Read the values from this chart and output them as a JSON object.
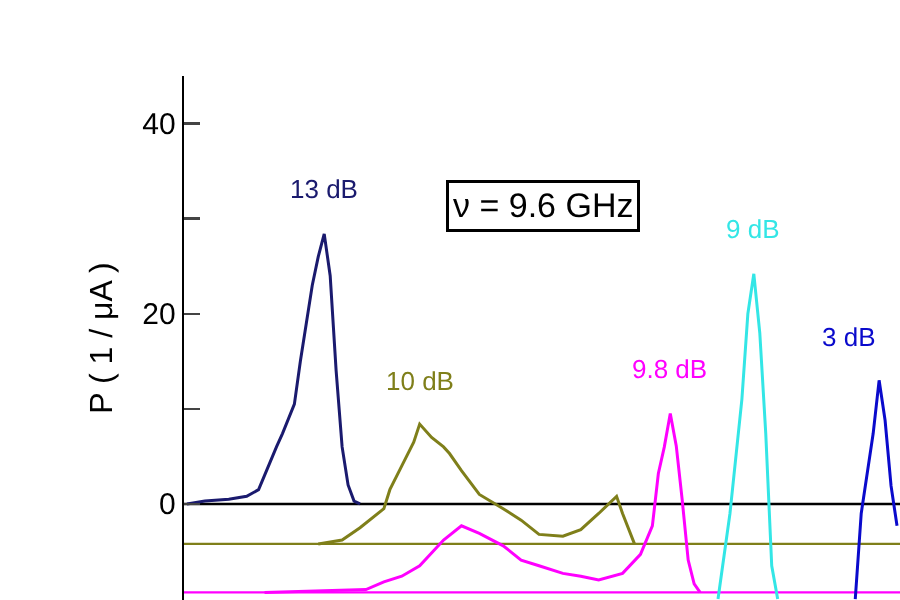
{
  "chart_data": {
    "type": "line",
    "ylabel": "P ( 1 / μA )",
    "annotations": [
      "ν = 9.6 GHz"
    ],
    "categories": [
      null,
      null,
      null,
      null,
      null,
      null,
      null,
      null,
      null,
      null,
      null,
      null,
      null,
      null,
      null,
      null,
      null,
      null,
      null,
      null,
      null,
      null,
      null,
      null,
      null,
      null,
      null,
      null,
      null,
      null,
      null,
      null,
      null,
      null,
      null,
      null,
      null,
      null,
      null,
      null,
      null,
      null,
      null,
      null,
      null,
      null,
      null,
      null,
      null,
      null,
      null,
      null,
      null,
      null,
      null,
      null,
      null,
      null,
      null,
      null,
      null,
      null,
      null,
      null,
      null,
      null,
      null,
      null,
      null,
      null,
      null,
      null,
      null,
      null,
      null,
      null,
      null,
      null,
      null,
      null,
      null,
      null,
      null,
      null,
      null,
      null,
      null,
      null,
      null,
      null,
      null,
      null,
      null,
      null,
      null,
      null,
      null,
      null,
      null,
      null,
      null,
      null,
      null,
      null,
      null,
      null,
      null,
      null,
      null,
      null,
      null,
      null,
      null,
      null,
      null,
      null,
      null,
      null,
      null,
      null
    ],
    "series": [
      {
        "name": "13 dB",
        "color": "#1a1a6e",
        "values": [
          0,
          null,
          null,
          0.3,
          null,
          null,
          null,
          0.5,
          null,
          null,
          0.8,
          null,
          1.5,
          3,
          null,
          6,
          7.4,
          null,
          10.5,
          15,
          19,
          23,
          26,
          28.4,
          24,
          14,
          6,
          2,
          0.3,
          0,
          null,
          null,
          null,
          null,
          null,
          null,
          null,
          null,
          null,
          null,
          null,
          null,
          null,
          null,
          null,
          null,
          null,
          null,
          null,
          null,
          null,
          null,
          null,
          null,
          null,
          null,
          null,
          null,
          null,
          null,
          null,
          null,
          null,
          null,
          null,
          null,
          null,
          null,
          null,
          null,
          null,
          null,
          null,
          null,
          null,
          null,
          null,
          null,
          null,
          null,
          null,
          null,
          null,
          null,
          null,
          null,
          null,
          null,
          null,
          null,
          null,
          null,
          null,
          null,
          null,
          null,
          null,
          null,
          null,
          null,
          null,
          null,
          null,
          null,
          null,
          null,
          null,
          null,
          null,
          null,
          null,
          null,
          null,
          null,
          null,
          null,
          null,
          null,
          null,
          null
        ]
      },
      {
        "name": "10 dB",
        "color": "#7f7f1a",
        "values": [
          null,
          null,
          null,
          null,
          null,
          null,
          null,
          null,
          null,
          null,
          null,
          null,
          null,
          null,
          null,
          null,
          null,
          null,
          null,
          null,
          null,
          null,
          -4.2,
          null,
          null,
          null,
          -3.8,
          null,
          null,
          -2.5,
          null,
          null,
          null,
          -0.5,
          1.5,
          null,
          4,
          null,
          6.5,
          8.4,
          null,
          7,
          null,
          6,
          5.3,
          null,
          3.5,
          null,
          null,
          1,
          null,
          null,
          null,
          -0.5,
          null,
          null,
          -1.7,
          null,
          null,
          -3.2,
          null,
          null,
          null,
          -3.4,
          null,
          null,
          -2.7,
          null,
          null,
          -1,
          null,
          null,
          0.8,
          -1,
          null,
          -4.2,
          null,
          null,
          null,
          null,
          null,
          null,
          null,
          null,
          null,
          null,
          null,
          null,
          null,
          null,
          null,
          null,
          null,
          null,
          null,
          null,
          null,
          null,
          null,
          null,
          null,
          null,
          null,
          null,
          null,
          null,
          null,
          null,
          null,
          null,
          null,
          null,
          null,
          null,
          null,
          null,
          null,
          null,
          null,
          null
        ]
      },
      {
        "name": "9.8 dB",
        "color": "#ff00ff",
        "values": [
          null,
          null,
          null,
          null,
          null,
          null,
          null,
          null,
          null,
          null,
          null,
          null,
          null,
          -9.3,
          null,
          null,
          null,
          null,
          null,
          null,
          null,
          null,
          null,
          null,
          null,
          null,
          null,
          null,
          null,
          null,
          -9,
          null,
          null,
          -8.2,
          null,
          null,
          -7.6,
          null,
          null,
          -6.5,
          null,
          null,
          null,
          -3.8,
          null,
          null,
          -2.3,
          null,
          null,
          -3.1,
          null,
          null,
          null,
          -4.4,
          null,
          null,
          -5.9,
          null,
          null,
          -6.5,
          null,
          null,
          null,
          -7.3,
          null,
          null,
          -7.6,
          null,
          null,
          -8,
          null,
          null,
          null,
          -7.3,
          null,
          null,
          -5.3,
          null,
          -2.3,
          3.2,
          6,
          9.5,
          6.1,
          0.4,
          -5.9,
          -8.4,
          -9.3,
          null,
          null,
          null,
          null,
          null,
          null,
          null,
          null,
          null,
          null,
          null,
          null,
          null,
          null,
          null,
          null,
          null,
          null,
          null,
          null,
          null,
          null,
          null,
          null,
          null,
          null,
          null,
          null,
          null,
          null,
          null,
          null,
          null
        ]
      },
      {
        "name": "9 dB",
        "color": "#33e6e6",
        "values": [
          null,
          null,
          null,
          null,
          null,
          null,
          null,
          null,
          null,
          null,
          null,
          null,
          null,
          null,
          null,
          null,
          null,
          null,
          null,
          null,
          null,
          null,
          null,
          null,
          null,
          null,
          null,
          null,
          null,
          null,
          null,
          null,
          null,
          null,
          null,
          null,
          null,
          null,
          null,
          null,
          null,
          null,
          null,
          null,
          null,
          null,
          null,
          null,
          null,
          null,
          null,
          null,
          null,
          null,
          null,
          null,
          null,
          null,
          null,
          null,
          null,
          null,
          null,
          null,
          null,
          null,
          null,
          null,
          null,
          null,
          null,
          null,
          null,
          null,
          null,
          null,
          null,
          null,
          null,
          null,
          null,
          null,
          null,
          null,
          null,
          null,
          null,
          null,
          null,
          -10,
          null,
          -1,
          null,
          11,
          20,
          24.2,
          18,
          7.4,
          -6.5,
          -10,
          null,
          null,
          null,
          null,
          null,
          null,
          null,
          null,
          null,
          null,
          null,
          null,
          null,
          null,
          null,
          null,
          null,
          null,
          null,
          null
        ]
      },
      {
        "name": "3 dB",
        "color": "#0a0acc",
        "values": [
          null,
          null,
          null,
          null,
          null,
          null,
          null,
          null,
          null,
          null,
          null,
          null,
          null,
          null,
          null,
          null,
          null,
          null,
          null,
          null,
          null,
          null,
          null,
          null,
          null,
          null,
          null,
          null,
          null,
          null,
          null,
          null,
          null,
          null,
          null,
          null,
          null,
          null,
          null,
          null,
          null,
          null,
          null,
          null,
          null,
          null,
          null,
          null,
          null,
          null,
          null,
          null,
          null,
          null,
          null,
          null,
          null,
          null,
          null,
          null,
          null,
          null,
          null,
          null,
          null,
          null,
          null,
          null,
          null,
          null,
          null,
          null,
          null,
          null,
          null,
          null,
          null,
          null,
          null,
          null,
          null,
          null,
          null,
          null,
          null,
          null,
          null,
          null,
          null,
          null,
          null,
          null,
          null,
          null,
          null,
          null,
          null,
          null,
          null,
          null,
          null,
          null,
          null,
          null,
          null,
          null,
          null,
          null,
          null,
          null,
          null,
          null,
          -10,
          -1,
          null,
          7.4,
          13,
          8.8,
          1.9,
          -2.3
        ]
      }
    ],
    "ref_lines": [
      {
        "axis": "y",
        "value": 0,
        "color": "#000000"
      },
      {
        "axis": "y",
        "value": -4.2,
        "color": "#7f7f1a"
      },
      {
        "axis": "y",
        "value": -9.3,
        "color": "#ff00ff"
      }
    ],
    "ylim": [
      -10.1,
      45
    ],
    "yticks": [
      0,
      {
        "value": 10,
        "label": null
      },
      20,
      {
        "value": 30,
        "label": null
      },
      40
    ],
    "tick_labels": "y",
    "grid": false,
    "legend": false
  }
}
